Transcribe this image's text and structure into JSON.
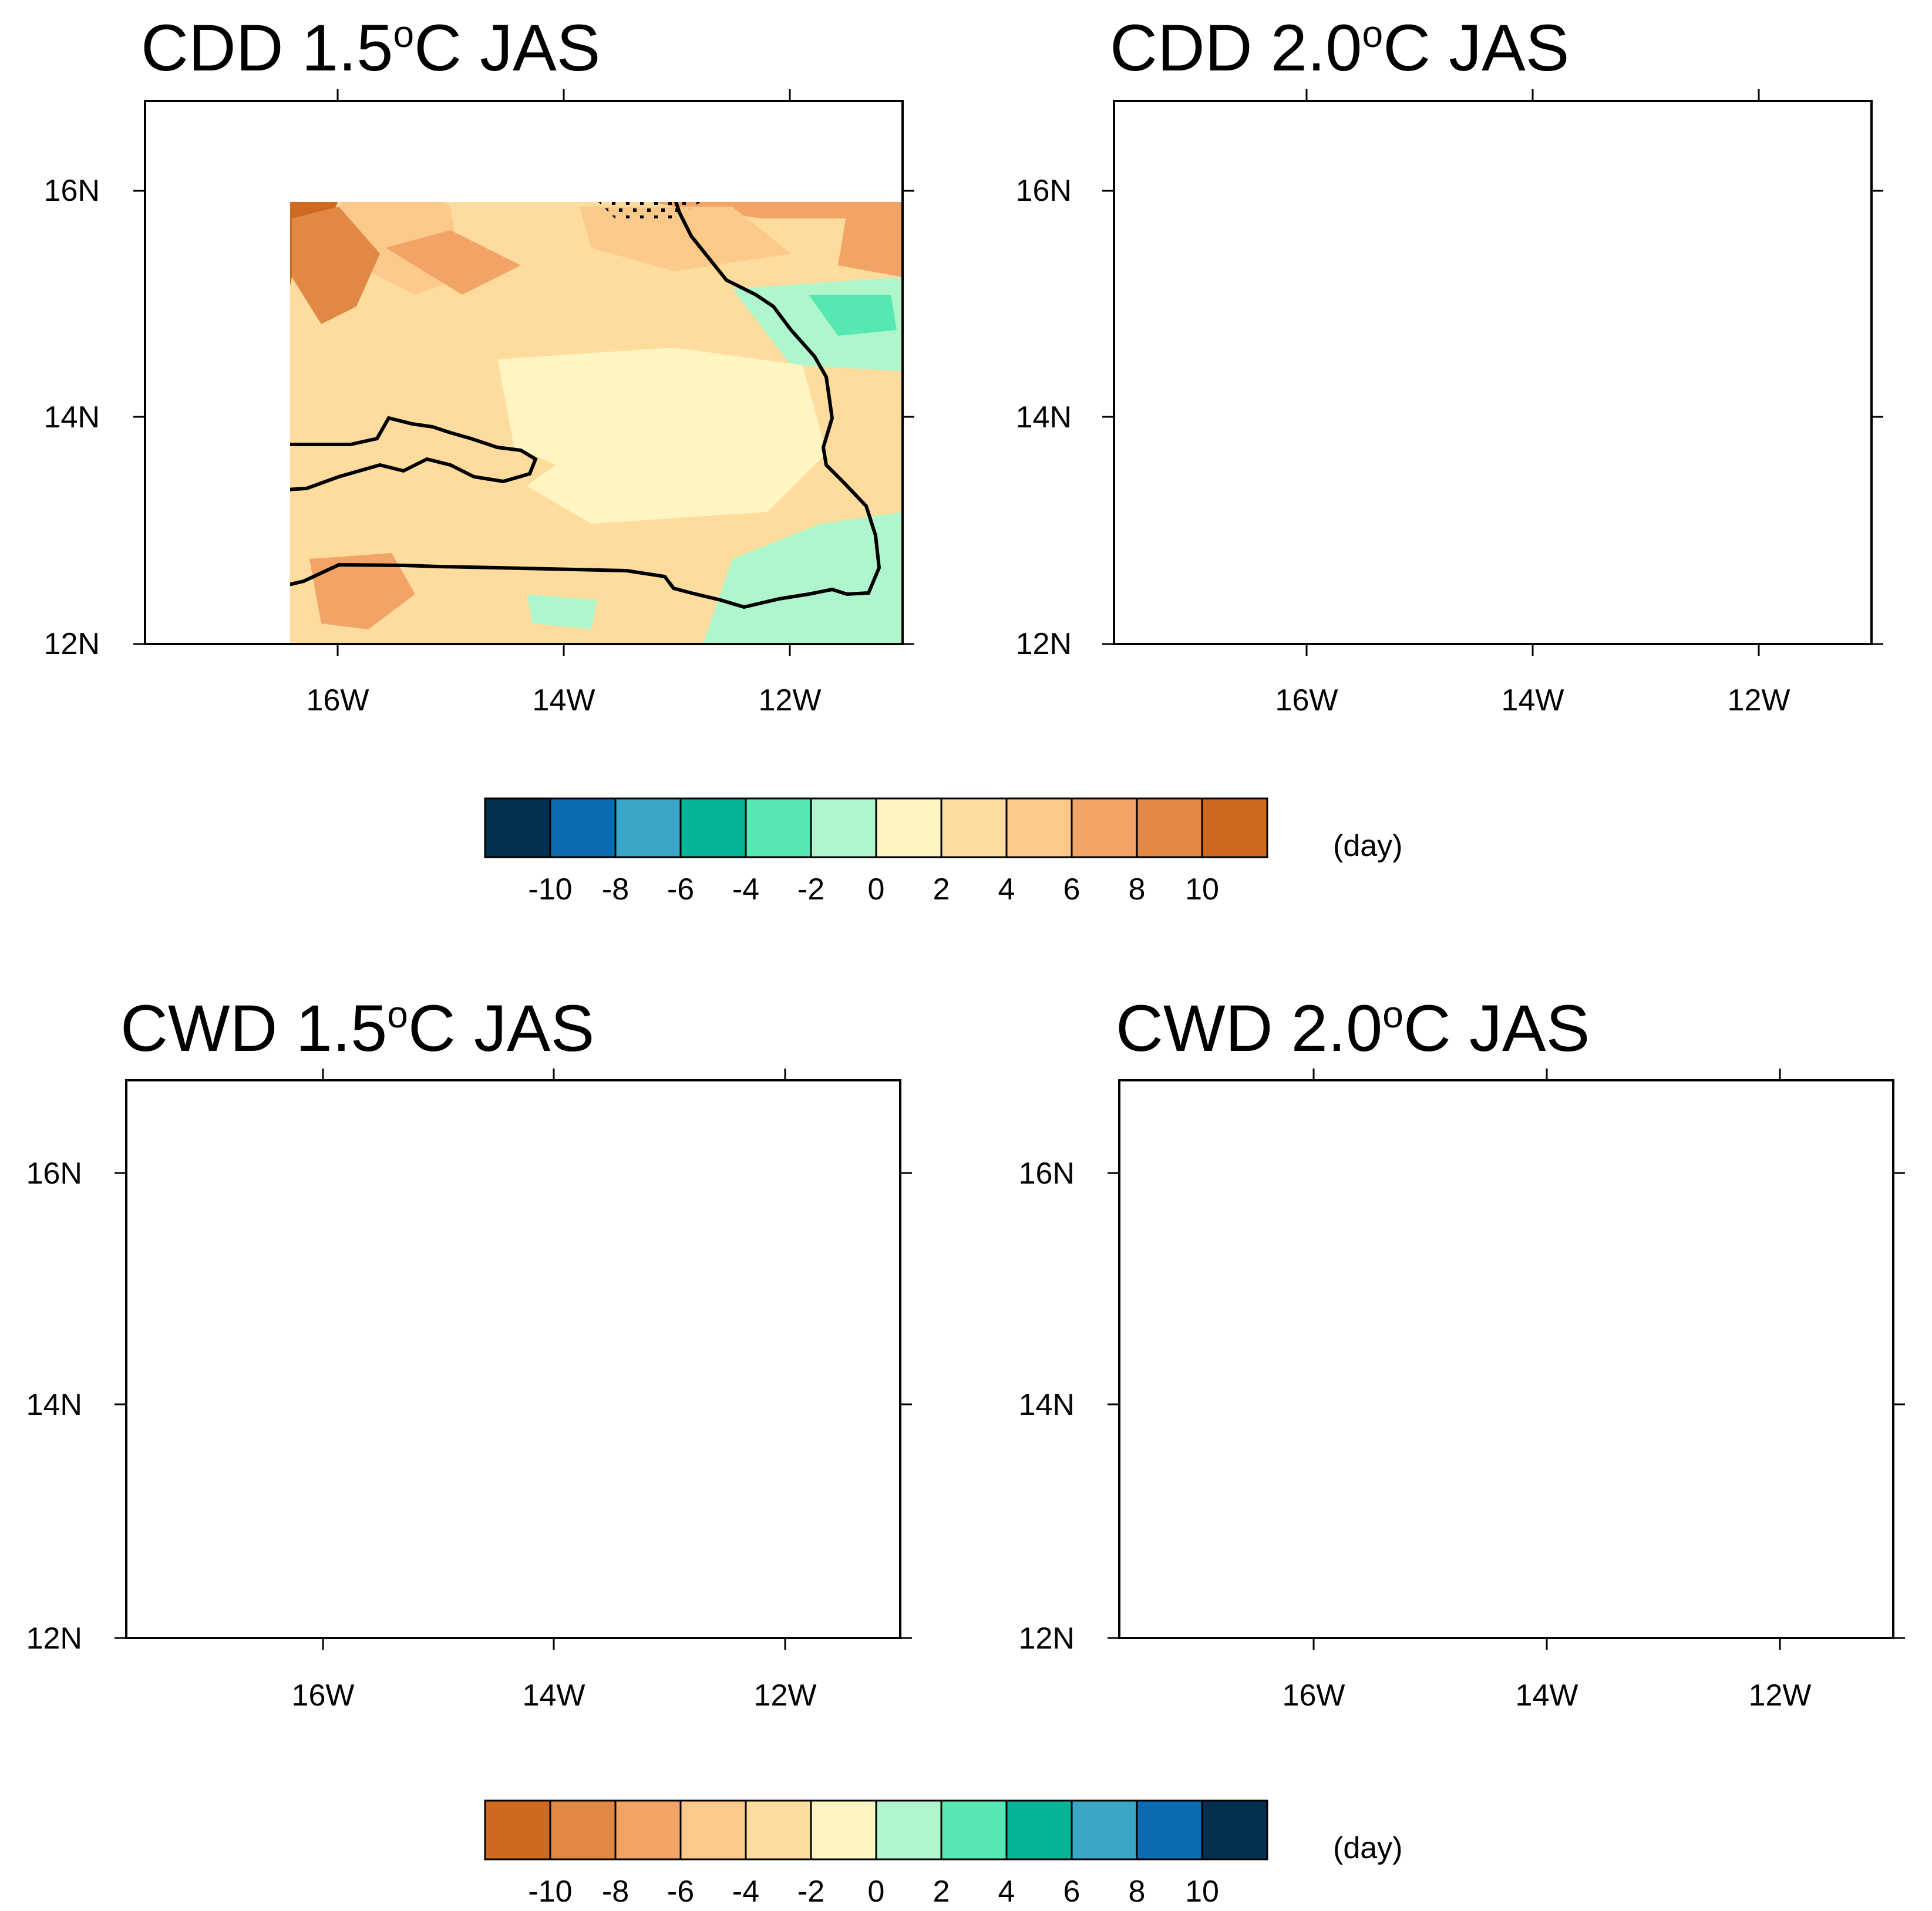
{
  "panels": [
    {
      "name": "cdd-15",
      "title": {
        "prefix": "CDD 1.5",
        "sup": "o",
        "suffix": "C JAS"
      },
      "lat_labels": [
        "16N",
        "14N",
        "12N"
      ],
      "lon_labels": [
        "16W",
        "14W",
        "12W"
      ]
    },
    {
      "name": "cdd-20",
      "title": {
        "prefix": "CDD 2.0",
        "sup": "o",
        "suffix": "C JAS"
      },
      "lat_labels": [
        "16N",
        "14N",
        "12N"
      ],
      "lon_labels": [
        "16W",
        "14W",
        "12W"
      ]
    },
    {
      "name": "cwd-15",
      "title": {
        "prefix": "CWD 1.5",
        "sup": "o",
        "suffix": "C JAS"
      },
      "lat_labels": [
        "16N",
        "14N",
        "12N"
      ],
      "lon_labels": [
        "16W",
        "14W",
        "12W"
      ]
    },
    {
      "name": "cwd-20",
      "title": {
        "prefix": "CWD 2.0",
        "sup": "o",
        "suffix": "C JAS"
      },
      "lat_labels": [
        "16N",
        "14N",
        "12N"
      ],
      "lon_labels": [
        "16W",
        "14W",
        "12W"
      ]
    }
  ],
  "colorbars": [
    {
      "name": "cdd-colorbar",
      "unit": "(day)",
      "ticks": [
        "-10",
        "-8",
        "-6",
        "-4",
        "-2",
        "0",
        "2",
        "4",
        "6",
        "8",
        "10"
      ],
      "colors": [
        "#03304f",
        "#0b6cb4",
        "#3aa6c8",
        "#06b597",
        "#55e8b3",
        "#b0f6cd",
        "#fef5c3",
        "#fddc9d",
        "#fbc98a",
        "#f2a467",
        "#e18944",
        "#cf691f"
      ]
    },
    {
      "name": "cwd-colorbar",
      "unit": "(day)",
      "ticks": [
        "-10",
        "-8",
        "-6",
        "-4",
        "-2",
        "0",
        "2",
        "4",
        "6",
        "8",
        "10"
      ],
      "colors": [
        "#cf691f",
        "#e18944",
        "#f2a467",
        "#fbc98a",
        "#fddc9d",
        "#fef5c3",
        "#b0f6cd",
        "#55e8b3",
        "#06b597",
        "#3aa6c8",
        "#0b6cb4",
        "#03304f"
      ]
    }
  ]
}
